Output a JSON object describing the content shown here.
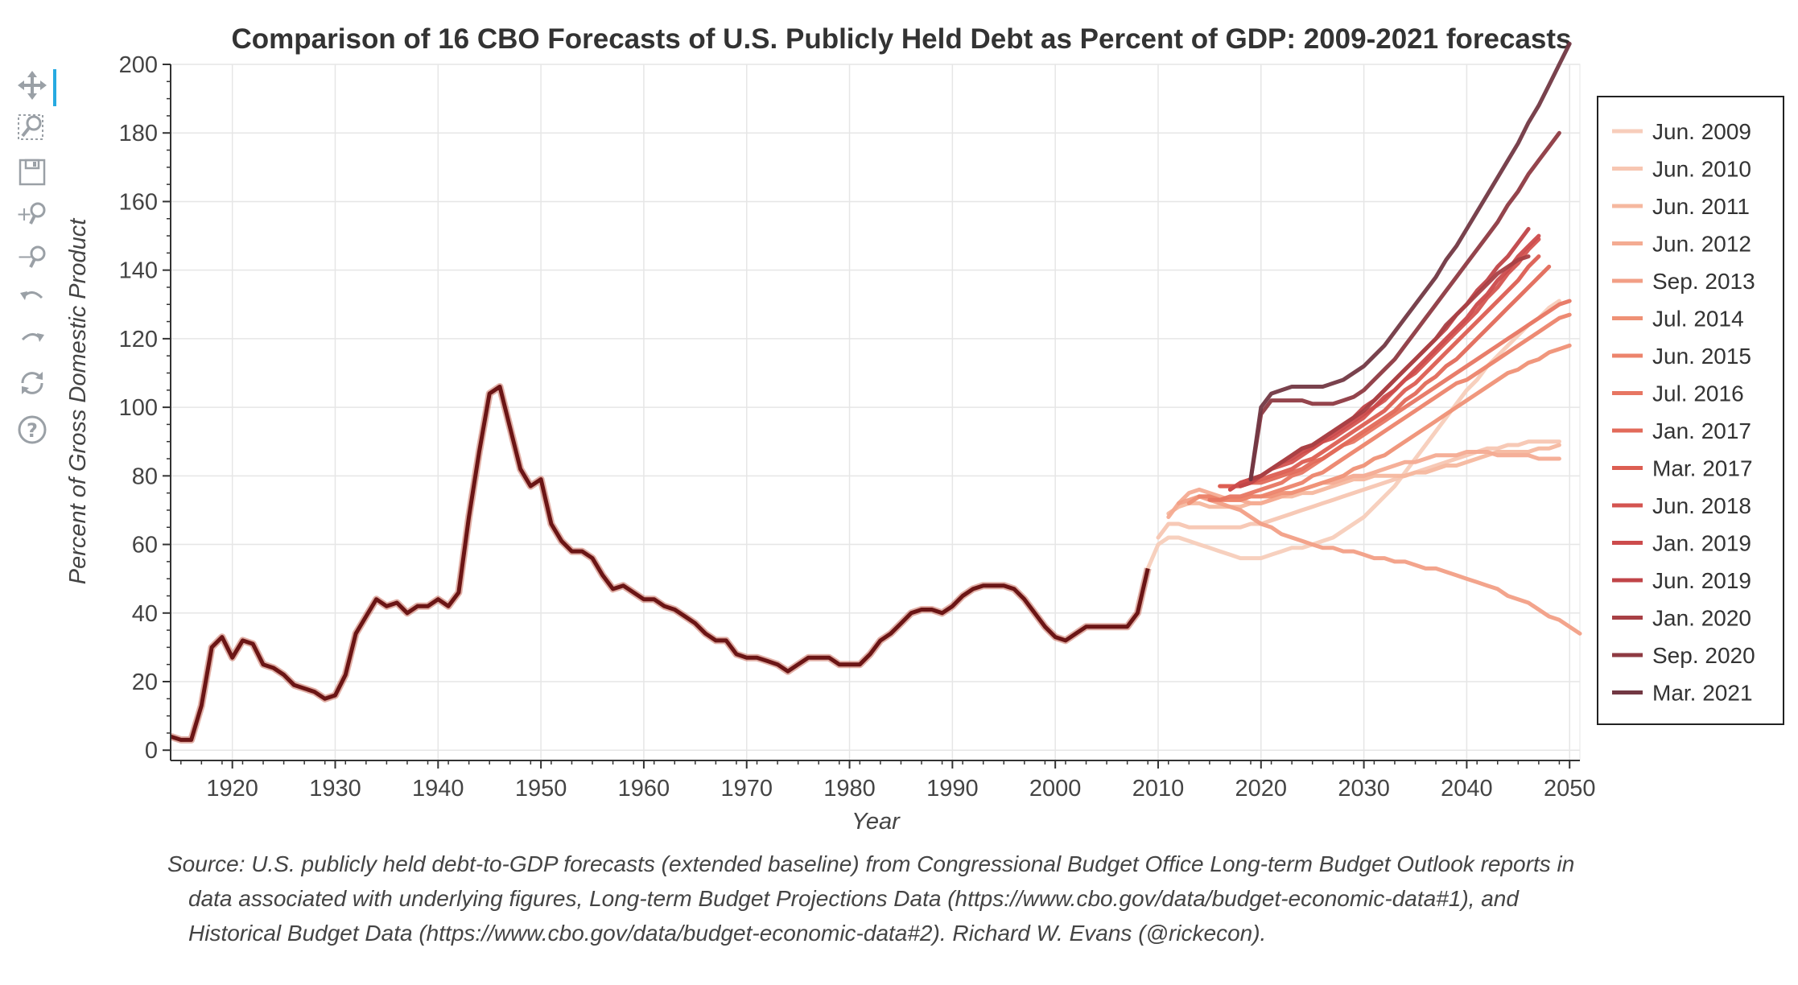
{
  "toolbar": {
    "tools": [
      {
        "name": "pan-tool",
        "icon": "pan-icon",
        "active": true
      },
      {
        "name": "box-zoom-tool",
        "icon": "box-zoom-icon",
        "active": false
      },
      {
        "name": "save-tool",
        "icon": "save-icon",
        "active": false
      },
      {
        "name": "zoom-in-tool",
        "icon": "zoom-in-icon",
        "active": false
      },
      {
        "name": "zoom-out-tool",
        "icon": "zoom-out-icon",
        "active": false
      },
      {
        "name": "undo-tool",
        "icon": "undo-icon",
        "active": false
      },
      {
        "name": "redo-tool",
        "icon": "redo-icon",
        "active": false
      },
      {
        "name": "reset-tool",
        "icon": "reset-icon",
        "active": false
      },
      {
        "name": "help-tool",
        "icon": "help-icon",
        "active": false
      }
    ]
  },
  "source_lines": [
    "Source: U.S. publicly held debt-to-GDP forecasts (extended baseline) from Congressional Budget Office Long-term Budget Outlook reports in",
    "data associated with underlying figures, Long-term Budget Projections Data (https://www.cbo.gov/data/budget-economic-data#1), and",
    "Historical Budget Data (https://www.cbo.gov/data/budget-economic-data#2). Richard W. Evans (@rickecon)."
  ],
  "chart_data": {
    "type": "line",
    "title": "Comparison of 16 CBO Forecasts of U.S. Publicly Held Debt as Percent of GDP: 2009-2021 forecasts",
    "xlabel": "Year",
    "ylabel": "Percent of Gross Domestic Product",
    "xlim": [
      1914,
      2051
    ],
    "ylim": [
      -3,
      200
    ],
    "xticks": [
      1920,
      1930,
      1940,
      1950,
      1960,
      1970,
      1980,
      1990,
      2000,
      2010,
      2020,
      2030,
      2040,
      2050
    ],
    "yticks": [
      0,
      20,
      40,
      60,
      80,
      100,
      120,
      140,
      160,
      180,
      200
    ],
    "grid": true,
    "legend_position": "right",
    "historical": {
      "x": [
        1914,
        1915,
        1916,
        1917,
        1918,
        1919,
        1920,
        1921,
        1922,
        1923,
        1924,
        1925,
        1926,
        1927,
        1928,
        1929,
        1930,
        1931,
        1932,
        1933,
        1934,
        1935,
        1936,
        1937,
        1938,
        1939,
        1940,
        1941,
        1942,
        1943,
        1944,
        1945,
        1946,
        1947,
        1948,
        1949,
        1950,
        1951,
        1952,
        1953,
        1954,
        1955,
        1956,
        1957,
        1958,
        1959,
        1960,
        1961,
        1962,
        1963,
        1964,
        1965,
        1966,
        1967,
        1968,
        1969,
        1970,
        1971,
        1972,
        1973,
        1974,
        1975,
        1976,
        1977,
        1978,
        1979,
        1980,
        1981,
        1982,
        1983,
        1984,
        1985,
        1986,
        1987,
        1988,
        1989,
        1990,
        1991,
        1992,
        1993,
        1994,
        1995,
        1996,
        1997,
        1998,
        1999,
        2000,
        2001,
        2002,
        2003,
        2004,
        2005,
        2006,
        2007,
        2008,
        2009
      ],
      "y": [
        4,
        3,
        3,
        13,
        30,
        33,
        27,
        32,
        31,
        25,
        24,
        22,
        19,
        18,
        17,
        15,
        16,
        22,
        34,
        39,
        44,
        42,
        43,
        40,
        42,
        42,
        44,
        42,
        46,
        68,
        87,
        104,
        106,
        94,
        82,
        77,
        79,
        66,
        61,
        58,
        58,
        56,
        51,
        47,
        48,
        46,
        44,
        44,
        42,
        41,
        39,
        37,
        34,
        32,
        32,
        28,
        27,
        27,
        26,
        25,
        23,
        25,
        27,
        27,
        27,
        25,
        25,
        25,
        28,
        32,
        34,
        37,
        40,
        41,
        41,
        40,
        42,
        45,
        47,
        48,
        48,
        48,
        47,
        44,
        40,
        36,
        33,
        32,
        34,
        36,
        36,
        36,
        36,
        36,
        40,
        53
      ]
    },
    "forecast_x": [
      2009,
      2010,
      2011,
      2012,
      2013,
      2014,
      2015,
      2016,
      2017,
      2018,
      2019,
      2020,
      2021,
      2022,
      2023,
      2024,
      2025,
      2026,
      2027,
      2028,
      2029,
      2030,
      2031,
      2032,
      2033,
      2034,
      2035,
      2036,
      2037,
      2038,
      2039,
      2040,
      2041,
      2042,
      2043,
      2044,
      2045,
      2046,
      2047,
      2048,
      2049,
      2050,
      2051
    ],
    "series": [
      {
        "name": "Jun. 2009",
        "color": "#f7cdbb",
        "start": 2009,
        "values": [
          53,
          60,
          62,
          62,
          61,
          60,
          59,
          58,
          57,
          56,
          56,
          56,
          57,
          58,
          59,
          59,
          60,
          61,
          62,
          64,
          66,
          68,
          71,
          74,
          77,
          81,
          85,
          89,
          93,
          97,
          101,
          105,
          108,
          112,
          115,
          118,
          121,
          124,
          126,
          129,
          131
        ]
      },
      {
        "name": "Jun. 2010",
        "color": "#f7c6b2",
        "start": 2010,
        "values": [
          62,
          66,
          66,
          65,
          65,
          65,
          65,
          65,
          65,
          66,
          66,
          67,
          68,
          69,
          70,
          71,
          72,
          73,
          74,
          75,
          76,
          77,
          78,
          79,
          80,
          81,
          82,
          83,
          84,
          85,
          86,
          87,
          88,
          88,
          89,
          89,
          90,
          90,
          90,
          90
        ]
      },
      {
        "name": "Jun. 2011",
        "color": "#f5b89f",
        "start": 2011,
        "values": [
          69,
          71,
          72,
          72,
          71,
          71,
          71,
          71,
          72,
          72,
          73,
          74,
          74,
          75,
          75,
          76,
          77,
          78,
          79,
          79,
          80,
          80,
          80,
          80,
          81,
          81,
          82,
          83,
          83,
          84,
          85,
          86,
          87,
          87,
          87,
          87,
          88,
          88,
          89
        ]
      },
      {
        "name": "Jun. 2012",
        "color": "#f4ab92",
        "start": 2011,
        "values": [
          68,
          72,
          75,
          76,
          75,
          74,
          73,
          73,
          72,
          72,
          73,
          74,
          75,
          76,
          77,
          78,
          78,
          79,
          80,
          80,
          81,
          82,
          83,
          84,
          84,
          85,
          86,
          86,
          86,
          87,
          87,
          87,
          86,
          86,
          86,
          86,
          85,
          85,
          85
        ]
      },
      {
        "name": "Sep. 2013",
        "color": "#f29f86",
        "start": 2012,
        "values": [
          72,
          73,
          74,
          73,
          72,
          71,
          70,
          68,
          66,
          65,
          63,
          62,
          61,
          60,
          59,
          59,
          58,
          58,
          57,
          56,
          56,
          55,
          55,
          54,
          53,
          53,
          52,
          51,
          50,
          49,
          48,
          47,
          45,
          44,
          43,
          41,
          39,
          38,
          36,
          34
        ]
      },
      {
        "name": "Jul. 2014",
        "color": "#ef9176",
        "start": 2013,
        "values": [
          72,
          74,
          74,
          73,
          73,
          73,
          74,
          74,
          74,
          75,
          75,
          76,
          77,
          78,
          79,
          80,
          82,
          83,
          85,
          86,
          88,
          90,
          92,
          94,
          96,
          98,
          100,
          102,
          104,
          106,
          108,
          110,
          111,
          113,
          114,
          116,
          117,
          118
        ]
      },
      {
        "name": "Jun. 2015",
        "color": "#ec846c",
        "start": 2014,
        "values": [
          74,
          74,
          73,
          73,
          73,
          74,
          74,
          75,
          76,
          77,
          78,
          80,
          81,
          83,
          85,
          87,
          89,
          91,
          93,
          95,
          97,
          99,
          101,
          103,
          105,
          107,
          108,
          110,
          112,
          114,
          116,
          118,
          120,
          122,
          124,
          126,
          127
        ]
      },
      {
        "name": "Jul. 2016",
        "color": "#e77662",
        "start": 2015,
        "values": [
          73,
          73,
          74,
          74,
          75,
          76,
          77,
          78,
          80,
          81,
          83,
          85,
          87,
          89,
          90,
          92,
          94,
          96,
          98,
          100,
          102,
          104,
          106,
          108,
          110,
          112,
          114,
          116,
          118,
          120,
          122,
          124,
          126,
          128,
          130,
          131
        ]
      },
      {
        "name": "Jan. 2017",
        "color": "#e26a5a",
        "start": 2016,
        "values": [
          77,
          77,
          77,
          78,
          78,
          79,
          80,
          81,
          82,
          84,
          85,
          87,
          89,
          91,
          93,
          95,
          97,
          99,
          102,
          104,
          107,
          109,
          112,
          114,
          117,
          120,
          123,
          126,
          129,
          132,
          135,
          138,
          141
        ]
      },
      {
        "name": "Mar. 2017",
        "color": "#dc5e52",
        "start": 2016,
        "values": [
          77,
          77,
          77,
          78,
          79,
          80,
          81,
          82,
          84,
          85,
          87,
          89,
          91,
          93,
          95,
          97,
          99,
          102,
          105,
          107,
          110,
          113,
          116,
          119,
          122,
          125,
          128,
          131,
          134,
          137,
          141,
          144
        ]
      },
      {
        "name": "Jun. 2018",
        "color": "#d45450",
        "start": 2017,
        "values": [
          76,
          78,
          79,
          80,
          82,
          83,
          84,
          86,
          88,
          90,
          91,
          93,
          95,
          97,
          100,
          102,
          105,
          108,
          110,
          113,
          116,
          119,
          122,
          125,
          128,
          132,
          135,
          139,
          142,
          146,
          149
        ]
      },
      {
        "name": "Jan. 2019",
        "color": "#cc4b4c",
        "start": 2017,
        "values": [
          76,
          78,
          79,
          80,
          82,
          84,
          85,
          87,
          88,
          90,
          92,
          94,
          96,
          98,
          100,
          103,
          105,
          108,
          111,
          114,
          117,
          120,
          123,
          126,
          130,
          133,
          137,
          140,
          144,
          147,
          150
        ]
      },
      {
        "name": "Jun. 2019",
        "color": "#c04448",
        "start": 2018,
        "values": [
          77,
          78,
          80,
          82,
          84,
          86,
          88,
          89,
          91,
          93,
          95,
          97,
          100,
          102,
          105,
          108,
          111,
          114,
          117,
          120,
          123,
          127,
          130,
          134,
          137,
          141,
          144,
          148,
          152
        ]
      },
      {
        "name": "Jan. 2020",
        "color": "#a84045",
        "start": 2019,
        "values": [
          79,
          80,
          82,
          84,
          86,
          88,
          89,
          91,
          93,
          95,
          97,
          99,
          102,
          105,
          108,
          111,
          114,
          117,
          120,
          124,
          127,
          130,
          133,
          136,
          139,
          141,
          143,
          144
        ]
      },
      {
        "name": "Sep. 2020",
        "color": "#8e3a42",
        "start": 2019,
        "values": [
          79,
          98,
          102,
          102,
          102,
          102,
          101,
          101,
          101,
          102,
          103,
          105,
          108,
          111,
          114,
          118,
          122,
          126,
          130,
          134,
          138,
          142,
          146,
          150,
          154,
          159,
          163,
          168,
          172,
          176,
          180
        ]
      },
      {
        "name": "Mar. 2021",
        "color": "#723843",
        "start": 2019,
        "values": [
          79,
          100,
          104,
          105,
          106,
          106,
          106,
          106,
          107,
          108,
          110,
          112,
          115,
          118,
          122,
          126,
          130,
          134,
          138,
          143,
          147,
          152,
          157,
          162,
          167,
          172,
          177,
          183,
          188,
          194,
          200,
          206
        ]
      }
    ]
  }
}
